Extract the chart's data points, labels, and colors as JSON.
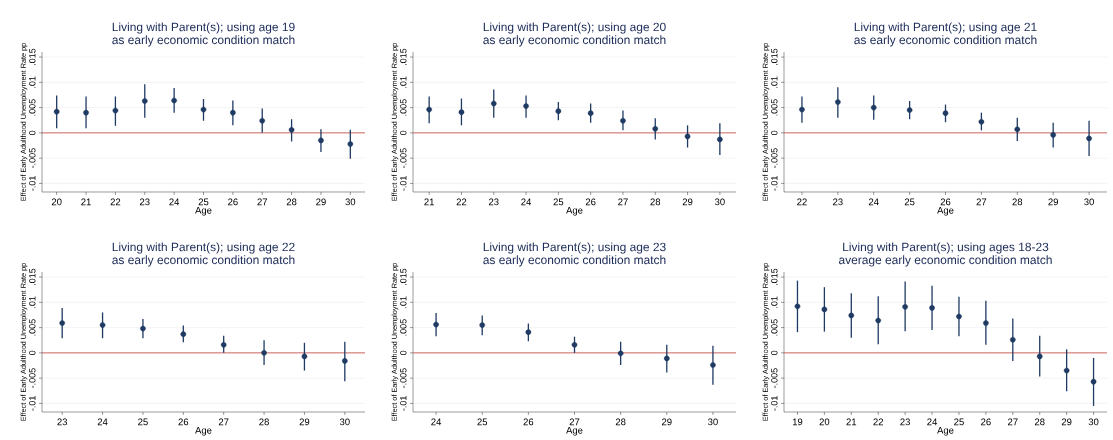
{
  "chart_data": [
    {
      "type": "scatter",
      "title": "Living with Parent(s); using age 19",
      "subtitle": "as early economic condition match",
      "xlabel": "Age",
      "ylabel": "Effect of Early Adulthood Unemployment Rate pp",
      "color": "#1f3b63",
      "grid": "y",
      "x": [
        20,
        21,
        22,
        23,
        24,
        25,
        26,
        27,
        28,
        29,
        30
      ],
      "values": [
        0.0042,
        0.004,
        0.0044,
        0.0063,
        0.0064,
        0.0046,
        0.004,
        0.0024,
        0.0006,
        -0.0015,
        -0.0022
      ],
      "errors": [
        [
          0.0009,
          0.0074
        ],
        [
          0.0009,
          0.0072
        ],
        [
          0.0014,
          0.0072
        ],
        [
          0.003,
          0.0096
        ],
        [
          0.004,
          0.0089
        ],
        [
          0.0024,
          0.0067
        ],
        [
          0.0015,
          0.0064
        ],
        [
          0.0,
          0.0048
        ],
        [
          -0.0017,
          0.0027
        ],
        [
          -0.0038,
          0.0007
        ],
        [
          -0.0051,
          0.0006
        ]
      ],
      "xlim": [
        19.5,
        30.5
      ],
      "ylim": [
        -0.0117,
        0.016
      ],
      "xticks": [
        20,
        21,
        22,
        23,
        24,
        25,
        26,
        27,
        28,
        29,
        30
      ],
      "yticks": [
        {
          "value": -0.01,
          "label": "-.01"
        },
        {
          "value": -0.005,
          "label": "-.005"
        },
        0,
        {
          "value": 0.005,
          "label": ".005"
        },
        {
          "value": 0.01,
          "label": ".01"
        },
        {
          "value": 0.015,
          "label": ".015"
        }
      ],
      "ref_lines": [
        {
          "axis": "y",
          "value": 0,
          "color": "#c8453f"
        }
      ]
    },
    {
      "type": "scatter",
      "title": "Living with Parent(s); using age 20",
      "subtitle": "as early economic condition match",
      "xlabel": "Age",
      "ylabel": "Effect of Early Adulthood Unemployment Rate pp",
      "color": "#1f3b63",
      "grid": "y",
      "x": [
        21,
        22,
        23,
        24,
        25,
        26,
        27,
        28,
        29,
        30
      ],
      "values": [
        0.0046,
        0.0041,
        0.0058,
        0.0053,
        0.0043,
        0.0039,
        0.0024,
        0.0008,
        -0.0007,
        -0.0013
      ],
      "errors": [
        [
          0.0019,
          0.0072
        ],
        [
          0.0015,
          0.0068
        ],
        [
          0.003,
          0.0086
        ],
        [
          0.003,
          0.0074
        ],
        [
          0.0025,
          0.0061
        ],
        [
          0.002,
          0.0058
        ],
        [
          0.0005,
          0.0044
        ],
        [
          -0.0013,
          0.0029
        ],
        [
          -0.0029,
          0.0015
        ],
        [
          -0.0044,
          0.0019
        ]
      ],
      "xlim": [
        20.5,
        30.5
      ],
      "ylim": [
        -0.0117,
        0.016
      ],
      "xticks": [
        21,
        22,
        23,
        24,
        25,
        26,
        27,
        28,
        29,
        30
      ],
      "yticks": [
        {
          "value": -0.01,
          "label": "-.01"
        },
        {
          "value": -0.005,
          "label": "-.005"
        },
        0,
        {
          "value": 0.005,
          "label": ".005"
        },
        {
          "value": 0.01,
          "label": ".01"
        },
        {
          "value": 0.015,
          "label": ".015"
        }
      ],
      "ref_lines": [
        {
          "axis": "y",
          "value": 0,
          "color": "#c8453f"
        }
      ]
    },
    {
      "type": "scatter",
      "title": "Living with Parent(s); using age 21",
      "subtitle": "as early economic condition match",
      "xlabel": "Age",
      "ylabel": "Effect of Early Adulthood Unemployment Rate pp",
      "color": "#1f3b63",
      "grid": "y",
      "x": [
        22,
        23,
        24,
        25,
        26,
        27,
        28,
        29,
        30
      ],
      "values": [
        0.0046,
        0.0061,
        0.005,
        0.0045,
        0.0039,
        0.0022,
        0.0007,
        -0.0004,
        -0.0011
      ],
      "errors": [
        [
          0.002,
          0.0072
        ],
        [
          0.003,
          0.009
        ],
        [
          0.0026,
          0.0074
        ],
        [
          0.0027,
          0.0063
        ],
        [
          0.0021,
          0.0056
        ],
        [
          0.0005,
          0.004
        ],
        [
          -0.0016,
          0.003
        ],
        [
          -0.0029,
          0.002
        ],
        [
          -0.0046,
          0.0024
        ]
      ],
      "xlim": [
        21.5,
        30.5
      ],
      "ylim": [
        -0.0117,
        0.016
      ],
      "xticks": [
        22,
        23,
        24,
        25,
        26,
        27,
        28,
        29,
        30
      ],
      "yticks": [
        {
          "value": -0.01,
          "label": "-.01"
        },
        {
          "value": -0.005,
          "label": "-.005"
        },
        0,
        {
          "value": 0.005,
          "label": ".005"
        },
        {
          "value": 0.01,
          "label": ".01"
        },
        {
          "value": 0.015,
          "label": ".015"
        }
      ],
      "ref_lines": [
        {
          "axis": "y",
          "value": 0,
          "color": "#c8453f"
        }
      ]
    },
    {
      "type": "scatter",
      "title": "Living with Parent(s); using age 22",
      "subtitle": "as early economic condition match",
      "xlabel": "Age",
      "ylabel": "Effect of Early Adulthood Unemployment Rate pp",
      "color": "#1f3b63",
      "grid": "y",
      "x": [
        23,
        24,
        25,
        26,
        27,
        28,
        29,
        30
      ],
      "values": [
        0.0059,
        0.0055,
        0.0048,
        0.0037,
        0.0016,
        0.0,
        -0.0007,
        -0.0016
      ],
      "errors": [
        [
          0.0029,
          0.0089
        ],
        [
          0.0029,
          0.008
        ],
        [
          0.0029,
          0.0067
        ],
        [
          0.0021,
          0.0054
        ],
        [
          0.0,
          0.0034
        ],
        [
          -0.0024,
          0.0025
        ],
        [
          -0.0035,
          0.002
        ],
        [
          -0.0056,
          0.0022
        ]
      ],
      "xlim": [
        22.5,
        30.5
      ],
      "ylim": [
        -0.0117,
        0.016
      ],
      "xticks": [
        23,
        24,
        25,
        26,
        27,
        28,
        29,
        30
      ],
      "yticks": [
        {
          "value": -0.01,
          "label": "-.01"
        },
        {
          "value": -0.005,
          "label": "-.005"
        },
        0,
        {
          "value": 0.005,
          "label": ".005"
        },
        {
          "value": 0.01,
          "label": ".01"
        },
        {
          "value": 0.015,
          "label": ".015"
        }
      ],
      "ref_lines": [
        {
          "axis": "y",
          "value": 0,
          "color": "#c8453f"
        }
      ]
    },
    {
      "type": "scatter",
      "title": "Living with Parent(s); using age 23",
      "subtitle": "as early economic condition match",
      "xlabel": "Age",
      "ylabel": "Effect of Early Adulthood Unemployment Rate pp",
      "color": "#1f3b63",
      "grid": "y",
      "x": [
        24,
        25,
        26,
        27,
        28,
        29,
        30
      ],
      "values": [
        0.0056,
        0.0055,
        0.0041,
        0.0016,
        -0.0001,
        -0.0011,
        -0.0024
      ],
      "errors": [
        [
          0.0033,
          0.0079
        ],
        [
          0.0035,
          0.0074
        ],
        [
          0.0023,
          0.0058
        ],
        [
          0.0,
          0.0032
        ],
        [
          -0.0024,
          0.0022
        ],
        [
          -0.0039,
          0.0016
        ],
        [
          -0.0063,
          0.0014
        ]
      ],
      "xlim": [
        23.5,
        30.5
      ],
      "ylim": [
        -0.0117,
        0.016
      ],
      "xticks": [
        24,
        25,
        26,
        27,
        28,
        29,
        30
      ],
      "yticks": [
        {
          "value": -0.01,
          "label": "-.01"
        },
        {
          "value": -0.005,
          "label": "-.005"
        },
        0,
        {
          "value": 0.005,
          "label": ".005"
        },
        {
          "value": 0.01,
          "label": ".01"
        },
        {
          "value": 0.015,
          "label": ".015"
        }
      ],
      "ref_lines": [
        {
          "axis": "y",
          "value": 0,
          "color": "#c8453f"
        }
      ]
    },
    {
      "type": "scatter",
      "title": "Living with Parent(s); using ages 18-23",
      "subtitle": "average early economic condition match",
      "xlabel": "Age",
      "ylabel": "Effect of Early Adulthood Unemployment Rate pp",
      "color": "#1f3b63",
      "grid": "y",
      "x": [
        19,
        20,
        21,
        22,
        23,
        24,
        25,
        26,
        27,
        28,
        29,
        30
      ],
      "values": [
        0.0092,
        0.0086,
        0.0074,
        0.0064,
        0.0091,
        0.0089,
        0.0072,
        0.0059,
        0.0026,
        -0.0007,
        -0.0035,
        -0.0057
      ],
      "errors": [
        [
          0.0041,
          0.0143
        ],
        [
          0.0042,
          0.013
        ],
        [
          0.003,
          0.0118
        ],
        [
          0.0017,
          0.0112
        ],
        [
          0.0043,
          0.0141
        ],
        [
          0.0045,
          0.0133
        ],
        [
          0.0033,
          0.0111
        ],
        [
          0.0016,
          0.0103
        ],
        [
          -0.0016,
          0.0068
        ],
        [
          -0.0047,
          0.0034
        ],
        [
          -0.0076,
          0.0007
        ],
        [
          -0.0105,
          -0.001
        ]
      ],
      "xlim": [
        18.5,
        30.5
      ],
      "ylim": [
        -0.0117,
        0.016
      ],
      "xticks": [
        19,
        20,
        21,
        22,
        23,
        24,
        25,
        26,
        27,
        28,
        29,
        30
      ],
      "yticks": [
        {
          "value": -0.01,
          "label": "-.01"
        },
        {
          "value": -0.005,
          "label": "-.005"
        },
        0,
        {
          "value": 0.005,
          "label": ".005"
        },
        {
          "value": 0.01,
          "label": ".01"
        },
        {
          "value": 0.015,
          "label": ".015"
        }
      ],
      "ref_lines": [
        {
          "axis": "y",
          "value": 0,
          "color": "#c8453f"
        }
      ]
    }
  ]
}
